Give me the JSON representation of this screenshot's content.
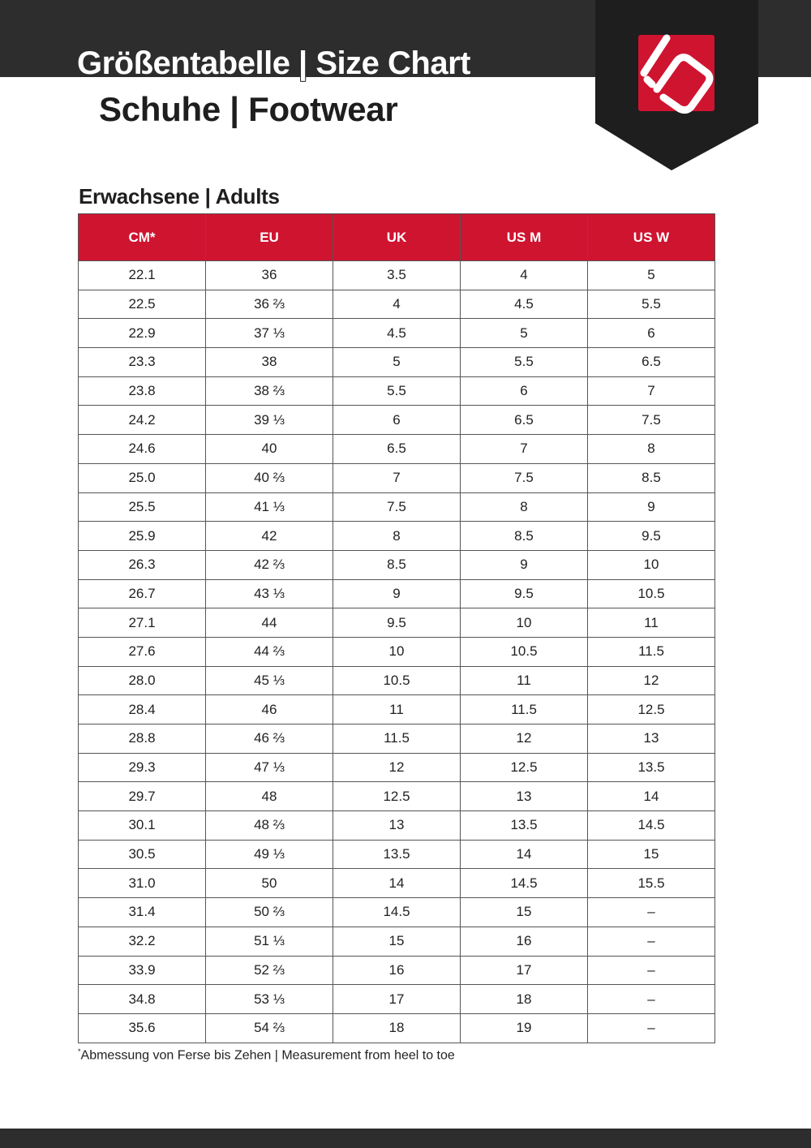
{
  "header": {
    "title": "Größentabelle | Size Chart",
    "subtitle": "Schuhe | Footwear",
    "brand_color": "#cf1430",
    "logo": "five-ten-logo"
  },
  "section": {
    "title": "Erwachsene | Adults"
  },
  "table": {
    "columns": [
      "CM*",
      "EU",
      "UK",
      "US M",
      "US W"
    ],
    "rows": [
      [
        "22.1",
        "36",
        "3.5",
        "4",
        "5"
      ],
      [
        "22.5",
        "36 ⅔",
        "4",
        "4.5",
        "5.5"
      ],
      [
        "22.9",
        "37 ⅓",
        "4.5",
        "5",
        "6"
      ],
      [
        "23.3",
        "38",
        "5",
        "5.5",
        "6.5"
      ],
      [
        "23.8",
        "38 ⅔",
        "5.5",
        "6",
        "7"
      ],
      [
        "24.2",
        "39 ⅓",
        "6",
        "6.5",
        "7.5"
      ],
      [
        "24.6",
        "40",
        "6.5",
        "7",
        "8"
      ],
      [
        "25.0",
        "40 ⅔",
        "7",
        "7.5",
        "8.5"
      ],
      [
        "25.5",
        "41 ⅓",
        "7.5",
        "8",
        "9"
      ],
      [
        "25.9",
        "42",
        "8",
        "8.5",
        "9.5"
      ],
      [
        "26.3",
        "42 ⅔",
        "8.5",
        "9",
        "10"
      ],
      [
        "26.7",
        "43 ⅓",
        "9",
        "9.5",
        "10.5"
      ],
      [
        "27.1",
        "44",
        "9.5",
        "10",
        "11"
      ],
      [
        "27.6",
        "44 ⅔",
        "10",
        "10.5",
        "11.5"
      ],
      [
        "28.0",
        "45 ⅓",
        "10.5",
        "11",
        "12"
      ],
      [
        "28.4",
        "46",
        "11",
        "11.5",
        "12.5"
      ],
      [
        "28.8",
        "46 ⅔",
        "11.5",
        "12",
        "13"
      ],
      [
        "29.3",
        "47 ⅓",
        "12",
        "12.5",
        "13.5"
      ],
      [
        "29.7",
        "48",
        "12.5",
        "13",
        "14"
      ],
      [
        "30.1",
        "48 ⅔",
        "13",
        "13.5",
        "14.5"
      ],
      [
        "30.5",
        "49 ⅓",
        "13.5",
        "14",
        "15"
      ],
      [
        "31.0",
        "50",
        "14",
        "14.5",
        "15.5"
      ],
      [
        "31.4",
        "50 ⅔",
        "14.5",
        "15",
        "–"
      ],
      [
        "32.2",
        "51 ⅓",
        "15",
        "16",
        "–"
      ],
      [
        "33.9",
        "52 ⅔",
        "16",
        "17",
        "–"
      ],
      [
        "34.8",
        "53 ⅓",
        "17",
        "18",
        "–"
      ],
      [
        "35.6",
        "54 ⅔",
        "18",
        "19",
        "–"
      ]
    ]
  },
  "footnote": {
    "marker": "*",
    "text": "Abmessung von Ferse bis Zehen | Measurement from heel to toe"
  }
}
